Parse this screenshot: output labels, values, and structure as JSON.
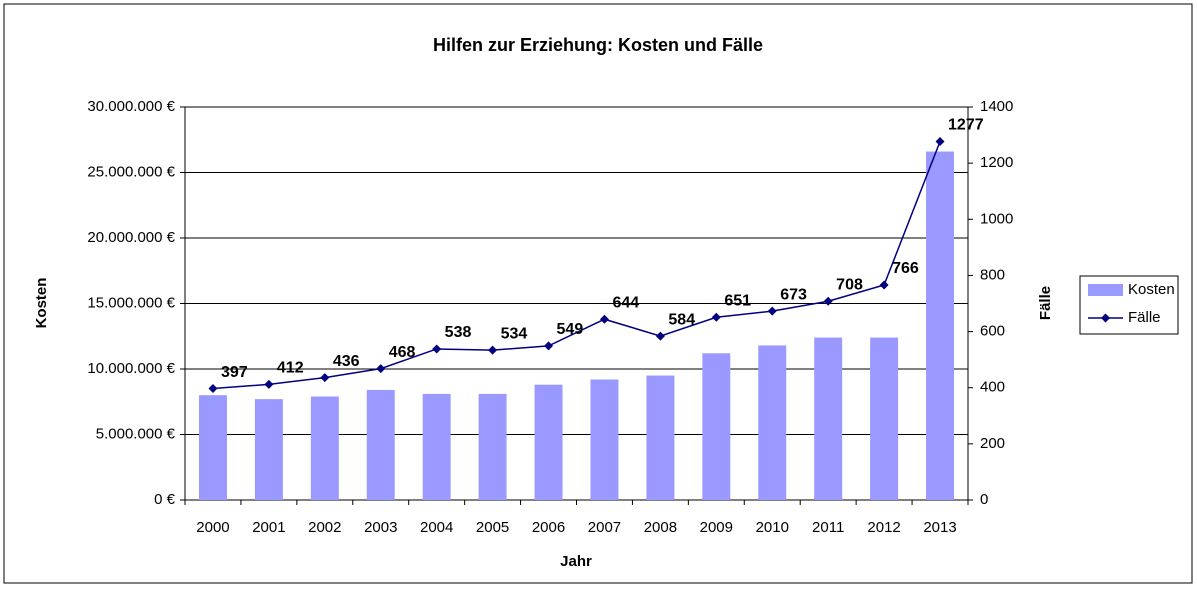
{
  "chart_data": {
    "type": "bar-line",
    "title": "Hilfen zur Erziehung: Kosten und Fälle",
    "xlabel": "Jahr",
    "ylabel": "Kosten",
    "y2label": "Fälle",
    "categories": [
      "2000",
      "2001",
      "2002",
      "2003",
      "2004",
      "2005",
      "2006",
      "2007",
      "2008",
      "2009",
      "2010",
      "2011",
      "2012",
      "2013"
    ],
    "series": [
      {
        "name": "Kosten",
        "type": "bar",
        "color": "#9999ff",
        "axis": "y",
        "values": [
          8000000,
          7700000,
          7900000,
          8400000,
          8100000,
          8100000,
          8800000,
          9200000,
          9500000,
          11200000,
          11800000,
          12400000,
          12400000,
          26600000
        ]
      },
      {
        "name": "Fälle",
        "type": "line",
        "color": "#000080",
        "axis": "y2",
        "values": [
          397,
          412,
          436,
          468,
          538,
          534,
          549,
          644,
          584,
          651,
          673,
          708,
          766,
          1277
        ]
      }
    ],
    "ylim": [
      0,
      30000000
    ],
    "yticks": [
      {
        "value": 0,
        "label": "0 €"
      },
      {
        "value": 5000000,
        "label": "5.000.000 €"
      },
      {
        "value": 10000000,
        "label": "10.000.000 €"
      },
      {
        "value": 15000000,
        "label": "15.000.000 €"
      },
      {
        "value": 20000000,
        "label": "20.000.000 €"
      },
      {
        "value": 25000000,
        "label": "25.000.000 €"
      },
      {
        "value": 30000000,
        "label": "30.000.000 €"
      }
    ],
    "y2lim": [
      0,
      1400
    ],
    "y2ticks": [
      0,
      200,
      400,
      600,
      800,
      1000,
      1200,
      1400
    ],
    "grid": true,
    "legend": "right"
  }
}
